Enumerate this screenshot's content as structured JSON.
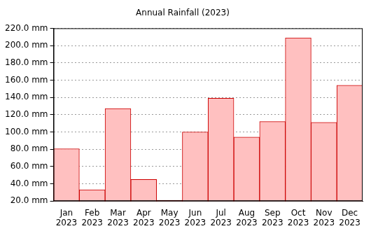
{
  "chart_data": {
    "type": "bar",
    "title": "Annual Rainfall (2023)",
    "categories": [
      "Jan 2023",
      "Feb 2023",
      "Mar 2023",
      "Apr 2023",
      "May 2023",
      "Jun 2023",
      "Jul 2023",
      "Aug 2023",
      "Sep 2023",
      "Oct 2023",
      "Nov 2023",
      "Dec 2023"
    ],
    "values": [
      80.5,
      33,
      127,
      45,
      21,
      100,
      139,
      94,
      112,
      209,
      111,
      154
    ],
    "color": "#ffc0c0",
    "ylim": [
      20,
      220
    ],
    "yticks": [
      {
        "value": 20,
        "label": "20.0 mm"
      },
      {
        "value": 40,
        "label": "40.0 mm"
      },
      {
        "value": 60,
        "label": "60.0 mm"
      },
      {
        "value": 80,
        "label": "80.0 mm"
      },
      {
        "value": 100,
        "label": "100.0 mm"
      },
      {
        "value": 120,
        "label": "120.0 mm"
      },
      {
        "value": 140,
        "label": "140.0 mm"
      },
      {
        "value": 160,
        "label": "160.0 mm"
      },
      {
        "value": 180,
        "label": "180.0 mm"
      },
      {
        "value": 200,
        "label": "200.0 mm"
      },
      {
        "value": 220,
        "label": "220.0 mm"
      }
    ],
    "grid": true
  }
}
